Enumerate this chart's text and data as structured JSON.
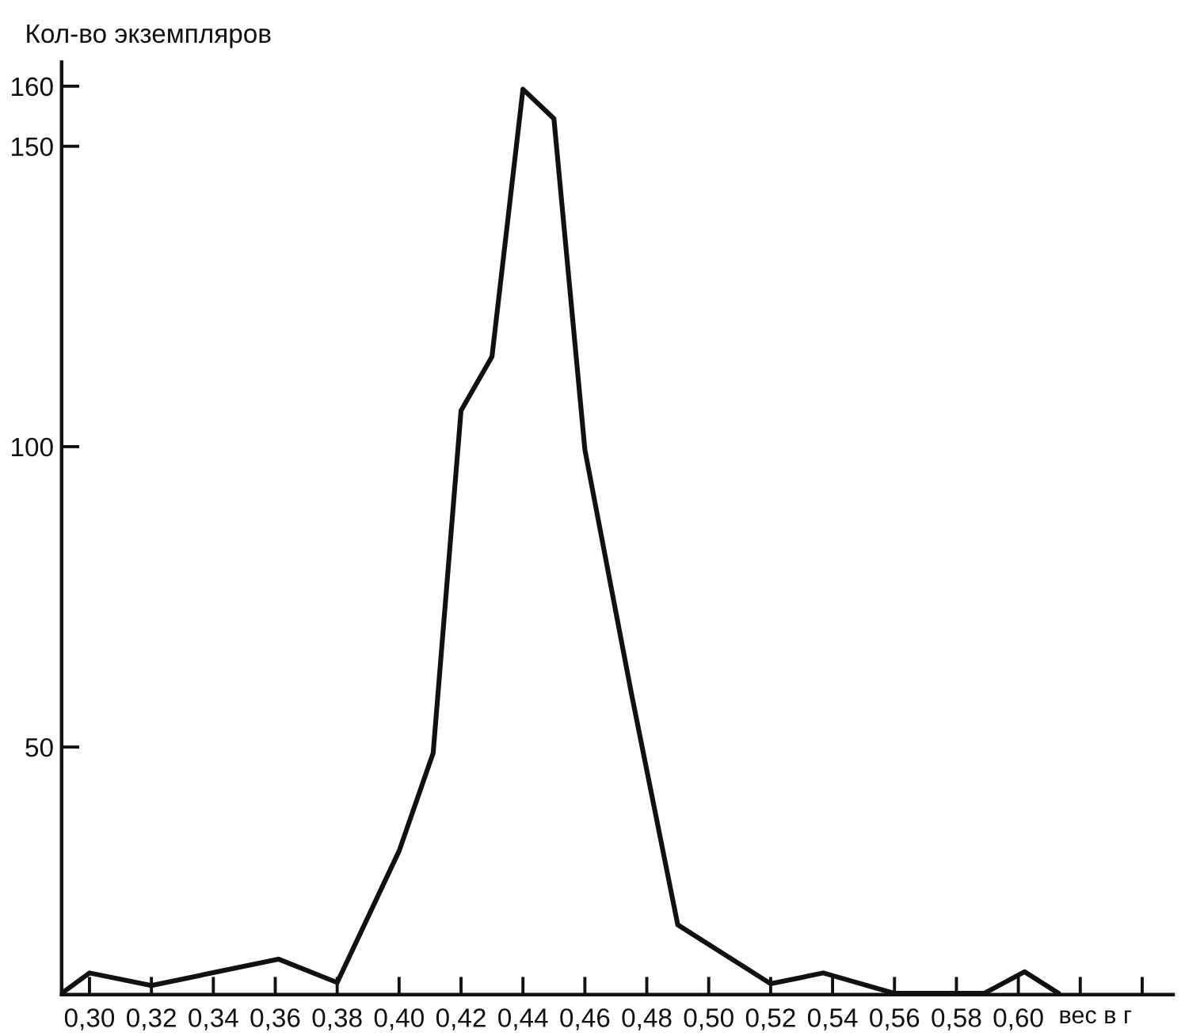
{
  "chart_data": {
    "type": "line",
    "ylabel": "Кол-во экземпляров",
    "xlabel": "вес в г",
    "x": [
      0.291,
      0.3,
      0.32,
      0.361,
      0.38,
      0.4,
      0.411,
      0.42,
      0.43,
      0.44,
      0.45,
      0.46,
      0.475,
      0.49,
      0.52,
      0.537,
      0.56,
      0.589,
      0.602,
      0.613
    ],
    "series": [
      {
        "color": "#111111",
        "values": [
          9,
          12.4,
          10.3,
          14.7,
          10.8,
          32.7,
          49,
          106,
          115,
          159.5,
          154.6,
          99.5,
          59,
          20.4,
          10.6,
          12.4,
          9,
          9,
          12.6,
          9
        ]
      }
    ],
    "xlim": [
      0.291,
      0.65
    ],
    "ylim": [
      8.8,
      164
    ],
    "xticks": [
      {
        "value": 0.3,
        "label": "0,30"
      },
      {
        "value": 0.32,
        "label": "0,32"
      },
      {
        "value": 0.34,
        "label": "0,34"
      },
      {
        "value": 0.36,
        "label": "0,36"
      },
      {
        "value": 0.38,
        "label": "0,38"
      },
      {
        "value": 0.4,
        "label": "0,40"
      },
      {
        "value": 0.42,
        "label": "0,42"
      },
      {
        "value": 0.44,
        "label": "0,44"
      },
      {
        "value": 0.46,
        "label": "0,46"
      },
      {
        "value": 0.48,
        "label": "0,48"
      },
      {
        "value": 0.5,
        "label": "0,50"
      },
      {
        "value": 0.52,
        "label": "0,52"
      },
      {
        "value": 0.54,
        "label": "0,54"
      },
      {
        "value": 0.56,
        "label": "0,56"
      },
      {
        "value": 0.58,
        "label": "0,58"
      },
      {
        "value": 0.6,
        "label": "0,60"
      },
      {
        "value": 0.62,
        "label": null
      },
      {
        "value": 0.64,
        "label": null
      }
    ],
    "yticks": [
      50,
      100,
      150,
      160
    ],
    "grid": false,
    "legend": false,
    "marker": "none",
    "line_style": "solid"
  }
}
